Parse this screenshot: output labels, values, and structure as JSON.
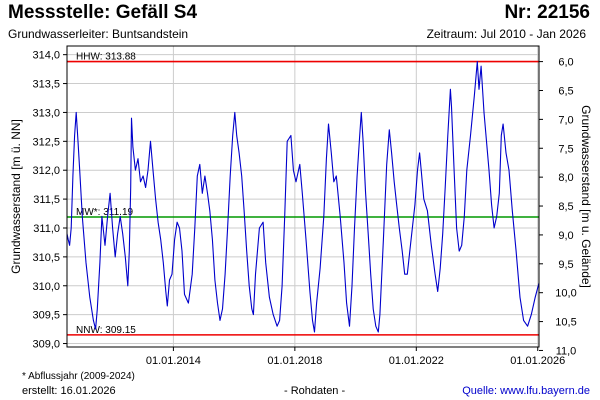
{
  "header": {
    "title": "Messstelle: Gefäll S4",
    "number": "Nr: 22156",
    "aquifer": "Grundwasserleiter: Buntsandstein",
    "period": "Zeitraum: Jul 2010 - Jan 2026"
  },
  "footer": {
    "footnote": "* Abflussjahr (2009-2024)",
    "created": "erstellt:  16.01.2026",
    "rawdata": "- Rohdaten -",
    "source": "Quelle:  www.lfu.bayern.de"
  },
  "colors": {
    "series": "#0000cc",
    "extreme_lines": "#ee0000",
    "mean_line": "#009900",
    "grid": "#cccccc"
  },
  "chart_data": {
    "type": "line",
    "ylabel": "Grundwasserstand [m ü. NN]",
    "y2label": "Grundwasserstand [m u. Gelände]",
    "ylim": [
      308.94,
      314.15
    ],
    "yticks": [
      "309,0",
      "309,5",
      "310,0",
      "310,5",
      "311,0",
      "311,5",
      "312,0",
      "312,5",
      "313,0",
      "313,5",
      "314,0"
    ],
    "yticks_values": [
      309.0,
      309.5,
      310.0,
      310.5,
      311.0,
      311.5,
      312.0,
      312.5,
      313.0,
      313.5,
      314.0
    ],
    "y2ticks": [
      "6,0",
      "6,5",
      "7,0",
      "7,5",
      "8,0",
      "8,5",
      "9,0",
      "9,5",
      "10,0",
      "10,5",
      "11,0"
    ],
    "y2ticks_at_ylevels": [
      313.88,
      313.38,
      312.88,
      312.38,
      311.88,
      311.38,
      310.88,
      310.38,
      309.88,
      309.38,
      308.88
    ],
    "xlim": [
      "2010-07-01",
      "2026-01-16"
    ],
    "xticks": [
      "01.01.2014",
      "01.01.2018",
      "01.01.2022",
      "01.01.2026"
    ],
    "xticks_dates": [
      "2014-01-01",
      "2018-01-01",
      "2022-01-01",
      "2026-01-01"
    ],
    "grid": true,
    "reference_lines": [
      {
        "label": "HHW: 313.88",
        "value": 313.88,
        "color": "#ee0000"
      },
      {
        "label": "MW*: 311.19",
        "value": 311.19,
        "color": "#009900"
      },
      {
        "label": "NNW: 309.15",
        "value": 309.15,
        "color": "#ee0000"
      }
    ],
    "series": [
      {
        "points": [
          [
            "2010-07-01",
            310.9
          ],
          [
            "2010-07-15",
            310.8
          ],
          [
            "2010-08-01",
            310.7
          ],
          [
            "2010-08-20",
            311.0
          ],
          [
            "2010-09-10",
            311.9
          ],
          [
            "2010-10-01",
            312.6
          ],
          [
            "2010-10-20",
            313.0
          ],
          [
            "2010-11-10",
            312.5
          ],
          [
            "2010-12-01",
            312.0
          ],
          [
            "2011-01-01",
            311.2
          ],
          [
            "2011-02-15",
            310.4
          ],
          [
            "2011-04-01",
            309.8
          ],
          [
            "2011-05-15",
            309.4
          ],
          [
            "2011-06-10",
            309.25
          ],
          [
            "2011-07-01",
            309.6
          ],
          [
            "2011-08-01",
            310.4
          ],
          [
            "2011-08-25",
            311.2
          ],
          [
            "2011-10-01",
            310.7
          ],
          [
            "2011-11-01",
            311.2
          ],
          [
            "2011-12-01",
            311.6
          ],
          [
            "2012-01-01",
            311.0
          ],
          [
            "2012-02-01",
            310.5
          ],
          [
            "2012-03-01",
            310.9
          ],
          [
            "2012-04-01",
            311.2
          ],
          [
            "2012-05-01",
            310.9
          ],
          [
            "2012-06-01",
            310.5
          ],
          [
            "2012-07-01",
            310.0
          ],
          [
            "2012-07-20",
            310.6
          ],
          [
            "2012-08-05",
            311.7
          ],
          [
            "2012-08-15",
            312.9
          ],
          [
            "2012-09-01",
            312.4
          ],
          [
            "2012-10-01",
            312.0
          ],
          [
            "2012-11-01",
            312.2
          ],
          [
            "2012-12-01",
            311.8
          ],
          [
            "2013-01-01",
            311.9
          ],
          [
            "2013-02-01",
            311.7
          ],
          [
            "2013-03-01",
            312.0
          ],
          [
            "2013-04-01",
            312.5
          ],
          [
            "2013-05-01",
            312.0
          ],
          [
            "2013-06-01",
            311.5
          ],
          [
            "2013-07-01",
            311.1
          ],
          [
            "2013-08-01",
            310.8
          ],
          [
            "2013-09-01",
            310.4
          ],
          [
            "2013-10-01",
            309.9
          ],
          [
            "2013-10-20",
            309.65
          ],
          [
            "2013-11-15",
            310.1
          ],
          [
            "2013-12-15",
            310.2
          ],
          [
            "2014-01-15",
            310.8
          ],
          [
            "2014-02-15",
            311.1
          ],
          [
            "2014-03-15",
            311.0
          ],
          [
            "2014-04-15",
            310.6
          ],
          [
            "2014-05-15",
            309.85
          ],
          [
            "2014-07-01",
            309.7
          ],
          [
            "2014-08-15",
            310.2
          ],
          [
            "2014-09-15",
            311.0
          ],
          [
            "2014-10-15",
            311.9
          ],
          [
            "2014-11-15",
            312.1
          ],
          [
            "2014-12-15",
            311.6
          ],
          [
            "2015-01-15",
            311.9
          ],
          [
            "2015-02-15",
            311.6
          ],
          [
            "2015-03-15",
            311.3
          ],
          [
            "2015-04-15",
            310.8
          ],
          [
            "2015-05-15",
            310.1
          ],
          [
            "2015-06-15",
            309.7
          ],
          [
            "2015-07-15",
            309.4
          ],
          [
            "2015-08-15",
            309.6
          ],
          [
            "2015-09-15",
            310.2
          ],
          [
            "2015-10-15",
            311.0
          ],
          [
            "2015-11-15",
            311.9
          ],
          [
            "2015-12-15",
            312.6
          ],
          [
            "2016-01-10",
            313.0
          ],
          [
            "2016-02-01",
            312.6
          ],
          [
            "2016-03-01",
            312.3
          ],
          [
            "2016-04-01",
            311.9
          ],
          [
            "2016-05-01",
            311.3
          ],
          [
            "2016-06-01",
            310.6
          ],
          [
            "2016-07-01",
            310.0
          ],
          [
            "2016-08-01",
            309.6
          ],
          [
            "2016-08-20",
            309.5
          ],
          [
            "2016-09-15",
            310.2
          ],
          [
            "2016-11-01",
            311.0
          ],
          [
            "2016-12-15",
            311.1
          ],
          [
            "2017-01-15",
            310.4
          ],
          [
            "2017-03-01",
            309.8
          ],
          [
            "2017-04-15",
            309.5
          ],
          [
            "2017-06-01",
            309.3
          ],
          [
            "2017-07-01",
            309.4
          ],
          [
            "2017-08-01",
            310.0
          ],
          [
            "2017-09-01",
            311.2
          ],
          [
            "2017-10-01",
            312.5
          ],
          [
            "2017-11-15",
            312.6
          ],
          [
            "2017-12-15",
            312.0
          ],
          [
            "2018-01-15",
            311.8
          ],
          [
            "2018-03-01",
            312.1
          ],
          [
            "2018-04-01",
            311.6
          ],
          [
            "2018-05-15",
            310.8
          ],
          [
            "2018-07-01",
            309.9
          ],
          [
            "2018-08-01",
            309.4
          ],
          [
            "2018-08-25",
            309.2
          ],
          [
            "2018-09-20",
            309.7
          ],
          [
            "2018-11-01",
            310.3
          ],
          [
            "2018-12-15",
            311.2
          ],
          [
            "2019-01-15",
            312.2
          ],
          [
            "2019-02-10",
            312.8
          ],
          [
            "2019-03-15",
            312.3
          ],
          [
            "2019-04-15",
            311.8
          ],
          [
            "2019-05-15",
            311.9
          ],
          [
            "2019-07-01",
            311.2
          ],
          [
            "2019-08-15",
            310.4
          ],
          [
            "2019-09-15",
            309.7
          ],
          [
            "2019-10-20",
            309.3
          ],
          [
            "2019-11-20",
            310.0
          ],
          [
            "2019-12-20",
            311.0
          ],
          [
            "2020-01-20",
            311.9
          ],
          [
            "2020-02-20",
            312.6
          ],
          [
            "2020-03-10",
            313.0
          ],
          [
            "2020-04-01",
            312.5
          ],
          [
            "2020-05-01",
            311.6
          ],
          [
            "2020-06-01",
            310.9
          ],
          [
            "2020-07-01",
            310.2
          ],
          [
            "2020-08-01",
            309.6
          ],
          [
            "2020-09-01",
            309.3
          ],
          [
            "2020-10-01",
            309.2
          ],
          [
            "2020-10-20",
            309.5
          ],
          [
            "2020-12-01",
            310.8
          ],
          [
            "2021-01-10",
            312.1
          ],
          [
            "2021-02-10",
            312.7
          ],
          [
            "2021-03-10",
            312.3
          ],
          [
            "2021-04-10",
            311.8
          ],
          [
            "2021-05-10",
            311.4
          ],
          [
            "2021-06-10",
            311.0
          ],
          [
            "2021-07-15",
            310.6
          ],
          [
            "2021-08-15",
            310.2
          ],
          [
            "2021-09-15",
            310.2
          ],
          [
            "2021-10-15",
            310.6
          ],
          [
            "2021-12-15",
            311.4
          ],
          [
            "2022-01-15",
            312.0
          ],
          [
            "2022-02-10",
            312.3
          ],
          [
            "2022-03-01",
            312.0
          ],
          [
            "2022-04-01",
            311.5
          ],
          [
            "2022-05-15",
            311.3
          ],
          [
            "2022-07-01",
            310.7
          ],
          [
            "2022-08-15",
            310.2
          ],
          [
            "2022-09-15",
            309.9
          ],
          [
            "2022-10-15",
            310.3
          ],
          [
            "2022-11-15",
            310.9
          ],
          [
            "2022-12-15",
            311.7
          ],
          [
            "2023-01-15",
            312.6
          ],
          [
            "2023-02-15",
            313.4
          ],
          [
            "2023-03-01",
            313.1
          ],
          [
            "2023-04-01",
            312.0
          ],
          [
            "2023-05-01",
            311.0
          ],
          [
            "2023-06-01",
            310.6
          ],
          [
            "2023-07-01",
            310.7
          ],
          [
            "2023-08-01",
            311.2
          ],
          [
            "2023-09-01",
            312.0
          ],
          [
            "2023-10-15",
            312.6
          ],
          [
            "2023-12-01",
            313.3
          ],
          [
            "2024-01-05",
            313.88
          ],
          [
            "2024-01-25",
            313.4
          ],
          [
            "2024-02-20",
            313.8
          ],
          [
            "2024-03-25",
            313.0
          ],
          [
            "2024-04-25",
            312.5
          ],
          [
            "2024-05-25",
            312.0
          ],
          [
            "2024-06-25",
            311.4
          ],
          [
            "2024-07-25",
            311.0
          ],
          [
            "2024-08-25",
            311.2
          ],
          [
            "2024-09-25",
            311.6
          ],
          [
            "2024-10-20",
            312.6
          ],
          [
            "2024-11-10",
            312.8
          ],
          [
            "2024-12-15",
            312.3
          ],
          [
            "2025-01-20",
            312.0
          ],
          [
            "2025-03-01",
            311.3
          ],
          [
            "2025-04-15",
            310.6
          ],
          [
            "2025-06-01",
            309.8
          ],
          [
            "2025-07-15",
            309.4
          ],
          [
            "2025-09-01",
            309.3
          ],
          [
            "2025-10-15",
            309.5
          ],
          [
            "2025-12-01",
            309.8
          ],
          [
            "2026-01-16",
            310.05
          ]
        ]
      }
    ]
  }
}
